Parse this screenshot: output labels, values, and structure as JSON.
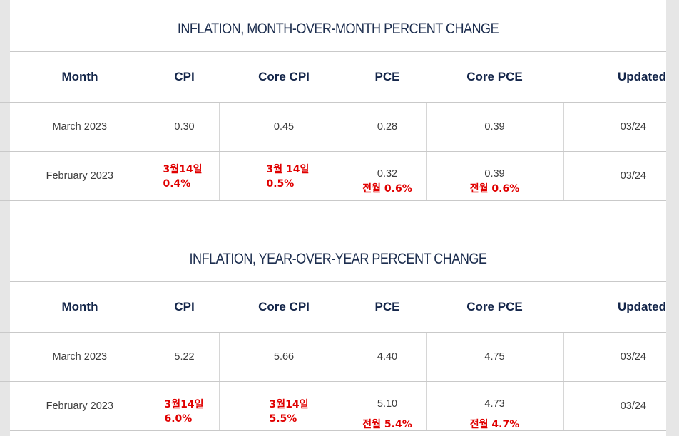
{
  "headers": [
    "Month",
    "CPI",
    "Core CPI",
    "PCE",
    "Core PCE",
    "Updated"
  ],
  "mom": {
    "title": "INFLATION, MONTH-OVER-MONTH PERCENT CHANGE",
    "rows": [
      {
        "month": "March 2023",
        "cpi": "0.30",
        "core_cpi": "0.45",
        "pce": "0.28",
        "core_pce": "0.39",
        "updated": "03/24"
      },
      {
        "month": "February 2023",
        "cpi": "",
        "core_cpi": "",
        "pce": "0.32",
        "core_pce": "0.39",
        "updated": "03/24",
        "annotations": {
          "cpi": [
            "3월14일",
            "0.4%"
          ],
          "core_cpi": [
            "3월 14일",
            "0.5%"
          ],
          "pce": "전월 0.6%",
          "core_pce": "전월 0.6%"
        }
      }
    ]
  },
  "yoy": {
    "title": "INFLATION, YEAR-OVER-YEAR PERCENT CHANGE",
    "rows": [
      {
        "month": "March 2023",
        "cpi": "5.22",
        "core_cpi": "5.66",
        "pce": "4.40",
        "core_pce": "4.75",
        "updated": "03/24"
      },
      {
        "month": "February 2023",
        "cpi": "",
        "core_cpi": "",
        "pce": "5.10",
        "core_pce": "4.73",
        "updated": "03/24",
        "annotations": {
          "cpi": [
            "3월14일",
            "6.0%"
          ],
          "core_cpi": [
            "3월14일",
            "5.5%"
          ],
          "pce": "전월 5.4%",
          "core_pce": "전월 4.7%"
        }
      }
    ]
  },
  "colors": {
    "title": "#1d2e4f",
    "header": "#14264a",
    "annotation": "#e00000",
    "background": "#e6e6e6"
  }
}
